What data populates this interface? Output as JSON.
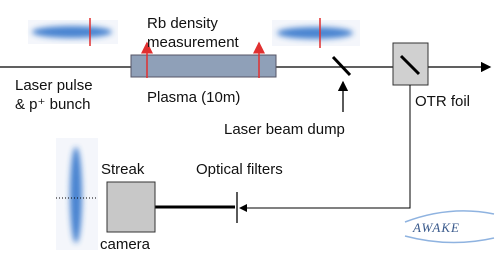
{
  "labels": {
    "rb_line1": "Rb density",
    "rb_line2": "measurement",
    "laser_line1": "Laser pulse",
    "laser_line2": "& p⁺ bunch",
    "plasma": "Plasma (10m)",
    "dump": "Laser beam dump",
    "otr": "OTR foil",
    "filters": "Optical filters",
    "streak_line1": "Streak",
    "streak_line2": "camera",
    "logo": "AWAKE"
  }
}
